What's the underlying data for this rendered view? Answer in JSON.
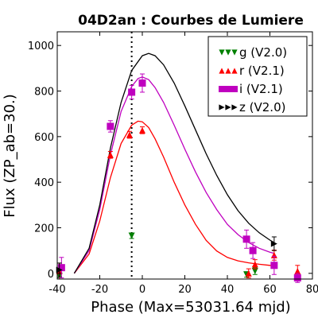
{
  "chart_data": {
    "type": "scatter",
    "title": "04D2an : Courbes de Lumiere",
    "xlabel": "Phase (Max=53031.64 mjd)",
    "ylabel": "Flux (ZP_ab=30.)",
    "xlim": [
      -40,
      80
    ],
    "ylim": [
      -25,
      1060
    ],
    "xticks": [
      "-40",
      "-20",
      "0",
      "20",
      "40",
      "60",
      "80"
    ],
    "yticks": [
      "0",
      "200",
      "400",
      "600",
      "800",
      "1000"
    ],
    "max_line_x": -5,
    "legend_position": "top-right",
    "series": [
      {
        "name": "g (V2.0)",
        "color": "#008000",
        "marker": "triangle-down",
        "points": [
          {
            "x": -39,
            "y": -10,
            "err": 10
          },
          {
            "x": -5,
            "y": 165,
            "err": 12
          },
          {
            "x": 49,
            "y": -5,
            "err": 12
          },
          {
            "x": 53,
            "y": 10,
            "err": 15
          }
        ]
      },
      {
        "name": "r (V2.1)",
        "color": "#ff0000",
        "marker": "triangle-up",
        "points": [
          {
            "x": -39,
            "y": 10,
            "err": 35
          },
          {
            "x": -15,
            "y": 520,
            "err": 15
          },
          {
            "x": -6,
            "y": 608,
            "err": 15
          },
          {
            "x": 0,
            "y": 628,
            "err": 15
          },
          {
            "x": 50,
            "y": 0,
            "err": 20
          },
          {
            "x": 53,
            "y": 40,
            "err": 20
          },
          {
            "x": 62,
            "y": 80,
            "err": 22
          },
          {
            "x": 73,
            "y": 10,
            "err": 25
          }
        ]
      },
      {
        "name": "i (V2.1)",
        "color": "#bf00bf",
        "marker": "square",
        "points": [
          {
            "x": -38,
            "y": 25,
            "err": 45
          },
          {
            "x": -15,
            "y": 645,
            "err": 25
          },
          {
            "x": -5,
            "y": 795,
            "err": 30
          },
          {
            "x": 0,
            "y": 835,
            "err": 40
          },
          {
            "x": 49,
            "y": 150,
            "err": 40
          },
          {
            "x": 52,
            "y": 100,
            "err": 35
          },
          {
            "x": 62,
            "y": 35,
            "err": 40
          },
          {
            "x": 73,
            "y": -20,
            "err": 20
          }
        ]
      },
      {
        "name": "z (V2.0)",
        "color": "#000000",
        "marker": "triangle-right",
        "points": [
          {
            "x": -39,
            "y": 15,
            "err": 30
          },
          {
            "x": 62,
            "y": 130,
            "err": 30
          }
        ]
      }
    ],
    "model_curves": [
      {
        "band": "r",
        "color": "#ff0000",
        "points": [
          [
            -32,
            0
          ],
          [
            -25,
            85
          ],
          [
            -20,
            230
          ],
          [
            -15,
            420
          ],
          [
            -10,
            570
          ],
          [
            -5,
            650
          ],
          [
            -2,
            668
          ],
          [
            0,
            665
          ],
          [
            3,
            640
          ],
          [
            6,
            590
          ],
          [
            10,
            510
          ],
          [
            15,
            400
          ],
          [
            20,
            300
          ],
          [
            25,
            215
          ],
          [
            30,
            145
          ],
          [
            35,
            98
          ],
          [
            40,
            70
          ],
          [
            45,
            55
          ],
          [
            50,
            46
          ],
          [
            55,
            40
          ],
          [
            60,
            35
          ],
          [
            62,
            33
          ]
        ]
      },
      {
        "band": "i",
        "color": "#bf00bf",
        "points": [
          [
            -32,
            0
          ],
          [
            -25,
            100
          ],
          [
            -20,
            280
          ],
          [
            -15,
            520
          ],
          [
            -10,
            710
          ],
          [
            -5,
            820
          ],
          [
            -2,
            855
          ],
          [
            0,
            862
          ],
          [
            3,
            850
          ],
          [
            6,
            815
          ],
          [
            10,
            750
          ],
          [
            15,
            650
          ],
          [
            20,
            545
          ],
          [
            25,
            445
          ],
          [
            30,
            355
          ],
          [
            35,
            280
          ],
          [
            40,
            215
          ],
          [
            45,
            170
          ],
          [
            50,
            135
          ],
          [
            55,
            110
          ],
          [
            60,
            93
          ],
          [
            62,
            88
          ]
        ]
      },
      {
        "band": "z",
        "color": "#000000",
        "points": [
          [
            -32,
            0
          ],
          [
            -25,
            110
          ],
          [
            -20,
            300
          ],
          [
            -15,
            550
          ],
          [
            -10,
            750
          ],
          [
            -5,
            890
          ],
          [
            0,
            955
          ],
          [
            3,
            965
          ],
          [
            6,
            955
          ],
          [
            10,
            915
          ],
          [
            15,
            835
          ],
          [
            20,
            735
          ],
          [
            25,
            630
          ],
          [
            30,
            525
          ],
          [
            35,
            430
          ],
          [
            40,
            345
          ],
          [
            45,
            275
          ],
          [
            50,
            220
          ],
          [
            55,
            178
          ],
          [
            60,
            146
          ],
          [
            62,
            135
          ]
        ]
      }
    ]
  }
}
